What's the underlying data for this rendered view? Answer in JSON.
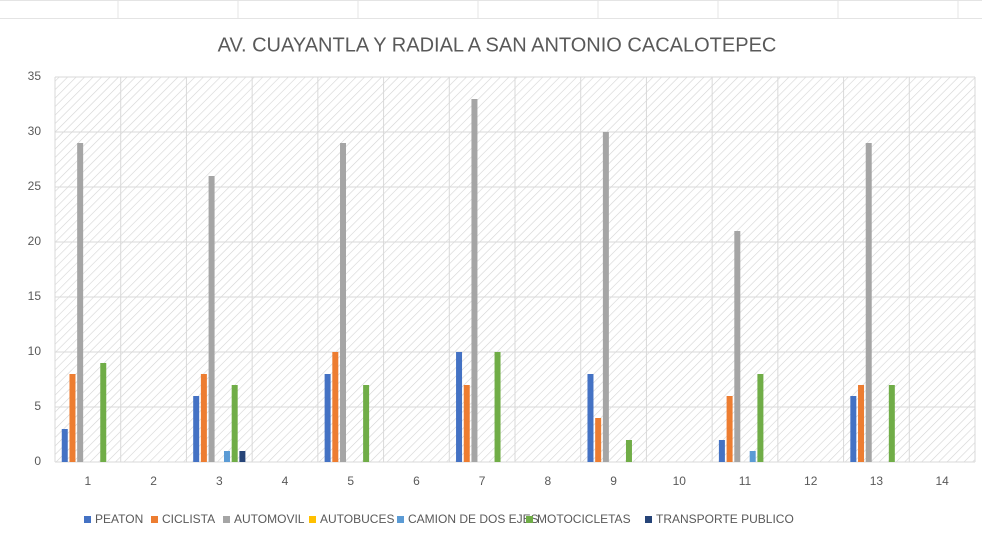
{
  "chart_data": {
    "type": "bar",
    "title": "AV. CUAYANTLA Y RADIAL A SAN ANTONIO CACALOTEPEC",
    "categories": [
      "1",
      "2",
      "3",
      "4",
      "5",
      "6",
      "7",
      "8",
      "9",
      "10",
      "11",
      "12",
      "13",
      "14"
    ],
    "series": [
      {
        "name": "PEATON",
        "color": "#4472c4",
        "values": [
          3,
          0,
          6,
          0,
          8,
          0,
          10,
          0,
          8,
          0,
          2,
          0,
          6,
          0
        ]
      },
      {
        "name": "CICLISTA",
        "color": "#ed7d31",
        "values": [
          8,
          0,
          8,
          0,
          10,
          0,
          7,
          0,
          4,
          0,
          6,
          0,
          7,
          0
        ]
      },
      {
        "name": "AUTOMOVIL",
        "color": "#a5a5a5",
        "values": [
          29,
          0,
          26,
          0,
          29,
          0,
          33,
          0,
          30,
          0,
          21,
          0,
          29,
          0
        ]
      },
      {
        "name": "AUTOBUCES",
        "color": "#ffc000",
        "values": [
          0,
          0,
          0,
          0,
          0,
          0,
          0,
          0,
          0,
          0,
          0,
          0,
          0,
          0
        ]
      },
      {
        "name": "CAMION DE DOS EJES",
        "color": "#5b9bd5",
        "values": [
          0,
          0,
          1,
          0,
          0,
          0,
          0,
          0,
          0,
          0,
          1,
          0,
          0,
          0
        ]
      },
      {
        "name": "MOTOCICLETAS",
        "color": "#70ad47",
        "values": [
          9,
          0,
          7,
          0,
          7,
          0,
          10,
          0,
          2,
          0,
          8,
          0,
          7,
          0
        ]
      },
      {
        "name": "TRANSPORTE PUBLICO",
        "color": "#264478",
        "values": [
          0,
          0,
          1,
          0,
          0,
          0,
          0,
          0,
          0,
          0,
          0,
          0,
          0,
          0
        ]
      }
    ],
    "ylim": [
      0,
      35
    ],
    "yticks": [
      0,
      5,
      10,
      15,
      20,
      25,
      30,
      35
    ],
    "grid": true,
    "legend": "bottom"
  }
}
